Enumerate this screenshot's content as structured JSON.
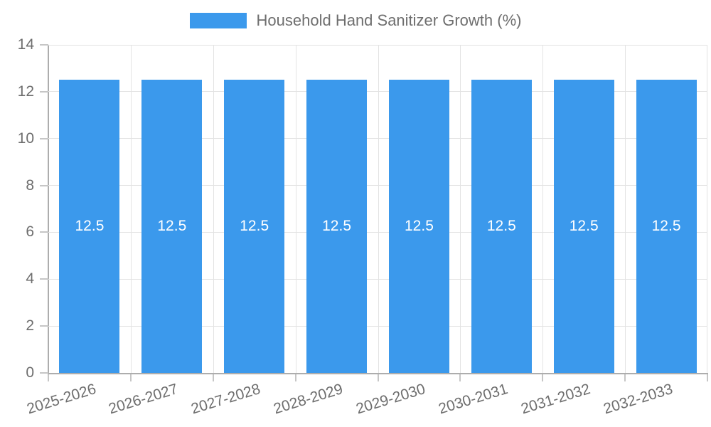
{
  "chart_data": {
    "type": "bar",
    "title": "Household Hand Sanitizer Growth (%)",
    "legend_position": "top",
    "legend": [
      "Household Hand Sanitizer Growth (%)"
    ],
    "categories": [
      "2025-2026",
      "2026-2027",
      "2027-2028",
      "2028-2029",
      "2029-2030",
      "2030-2031",
      "2031-2032",
      "2032-2033"
    ],
    "series": [
      {
        "name": "Household Hand Sanitizer Growth (%)",
        "values": [
          12.5,
          12.5,
          12.5,
          12.5,
          12.5,
          12.5,
          12.5,
          12.5
        ]
      }
    ],
    "bar_value_labels": [
      "12.5",
      "12.5",
      "12.5",
      "12.5",
      "12.5",
      "12.5",
      "12.5",
      "12.5"
    ],
    "xlabel": "",
    "ylabel": "",
    "ylim": [
      0,
      14
    ],
    "yticks": [
      0,
      2,
      4,
      6,
      8,
      10,
      12,
      14
    ],
    "grid": true,
    "colors": {
      "bar": "#3b99ec",
      "bar_label": "#ffffff",
      "axis_text": "#6e6e6e",
      "grid_line": "#e3e3e3",
      "axis_line": "#adadad",
      "background": "#ffffff"
    }
  }
}
